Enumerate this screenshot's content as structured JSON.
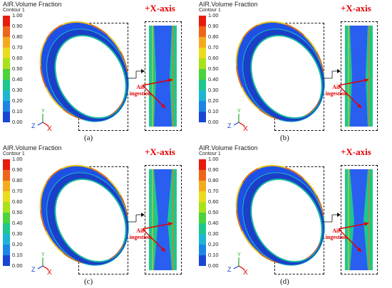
{
  "panels": [
    {
      "id": "a",
      "legend_title": "AIR.Volume Fraction",
      "legend_sub": "Contour 1",
      "axis_label": "+X-axis",
      "note": "Air ingestion",
      "caption": "(a)"
    },
    {
      "id": "b",
      "legend_title": "AIR.Volume Fraction",
      "legend_sub": "Contour 1",
      "axis_label": "+X-axis",
      "note": "Air ingestion",
      "caption": "(b)"
    },
    {
      "id": "c",
      "legend_title": "AIR.Volume Fraction",
      "legend_sub": "Contour 1",
      "axis_label": "+X-axis",
      "note": "Air ingestion",
      "caption": "(c)"
    },
    {
      "id": "d",
      "legend_title": "AIR.Volume Fraction",
      "legend_sub": "Contour 1",
      "axis_label": "+X-axis",
      "note": "Air ingestion",
      "caption": "(d)"
    }
  ],
  "legend_ticks": [
    "1.00",
    "0.90",
    "0.80",
    "0.70",
    "0.60",
    "0.50",
    "0.40",
    "0.30",
    "0.20",
    "0.10",
    "0.00"
  ],
  "legend_colors": [
    "#e81a10",
    "#f0641a",
    "#f5aa1e",
    "#eadc1c",
    "#a8e21c",
    "#4cd23a",
    "#1cc88c",
    "#1cb6d2",
    "#1c86e6",
    "#1a46d6"
  ],
  "triad": {
    "x": "X",
    "y": "Y",
    "z": "Z"
  },
  "colors": {
    "accent": "#e00000",
    "fluid": "#1e50e6",
    "rim": "#e8c21a"
  }
}
